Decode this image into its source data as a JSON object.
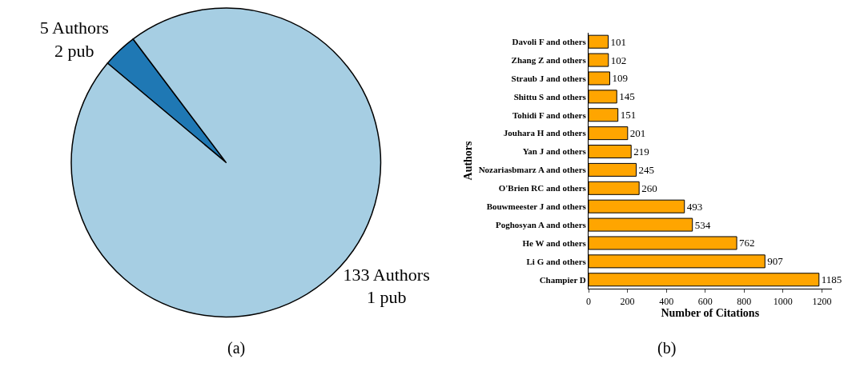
{
  "chart_data": [
    {
      "type": "pie",
      "categories": [
        "5 Authors\n2 pub",
        "133 Authors\n1 pub"
      ],
      "values": [
        5,
        133
      ],
      "colors": [
        "#1f78b4",
        "#a6cee3"
      ],
      "annotations": [
        "(a)"
      ]
    },
    {
      "type": "bar",
      "orientation": "horizontal",
      "categories": [
        "Davoli F and others",
        "Zhang Z and others",
        "Straub J and others",
        "Shittu S and others",
        "Tohidi F and others",
        "Jouhara H and others",
        "Yan J and others",
        "Nozariasbmarz A and others",
        "O'Brien RC and others",
        "Bouwmeester J and others",
        "Poghosyan A and others",
        "He W and others",
        "Li G and others",
        "Champier D"
      ],
      "values": [
        101,
        102,
        109,
        145,
        151,
        201,
        219,
        245,
        260,
        493,
        534,
        762,
        907,
        1185
      ],
      "color": "#ffa500",
      "xlim": [
        0,
        1250
      ],
      "xticks": [
        0,
        200,
        400,
        600,
        800,
        1000,
        1200
      ],
      "xlabel": "Number of Citations",
      "ylabel": "Authors",
      "data_labels": true,
      "annotations": [
        "(b)"
      ]
    }
  ]
}
